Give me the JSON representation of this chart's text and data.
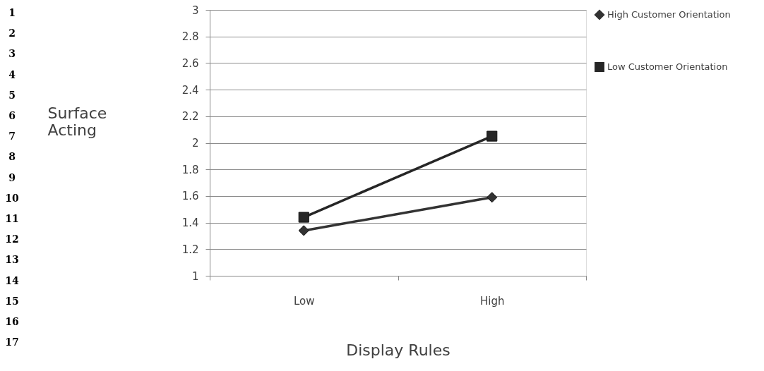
{
  "chart_data": {
    "type": "line",
    "xlabel": "Display Rules",
    "ylabel": "Surface Acting",
    "categories": [
      "Low",
      "High"
    ],
    "series": [
      {
        "name": "High Customer Orientation",
        "color": "#333333",
        "marker": "diamond",
        "values": [
          1.34,
          1.59
        ]
      },
      {
        "name": "Low Customer Orientation",
        "color": "#262626",
        "marker": "square",
        "values": [
          1.44,
          2.05
        ]
      }
    ],
    "ylim": [
      1,
      3
    ],
    "yticks": [
      1,
      1.2,
      1.4,
      1.6,
      1.8,
      2,
      2.2,
      2.4,
      2.6,
      2.8,
      3
    ],
    "grid": "y",
    "legend": "right",
    "line_style": "solid",
    "annotations": [
      "1",
      "2",
      "3",
      "4",
      "5",
      "6",
      "7",
      "8",
      "9",
      "10",
      "11",
      "12",
      "13",
      "14",
      "15",
      "16",
      "17"
    ]
  }
}
